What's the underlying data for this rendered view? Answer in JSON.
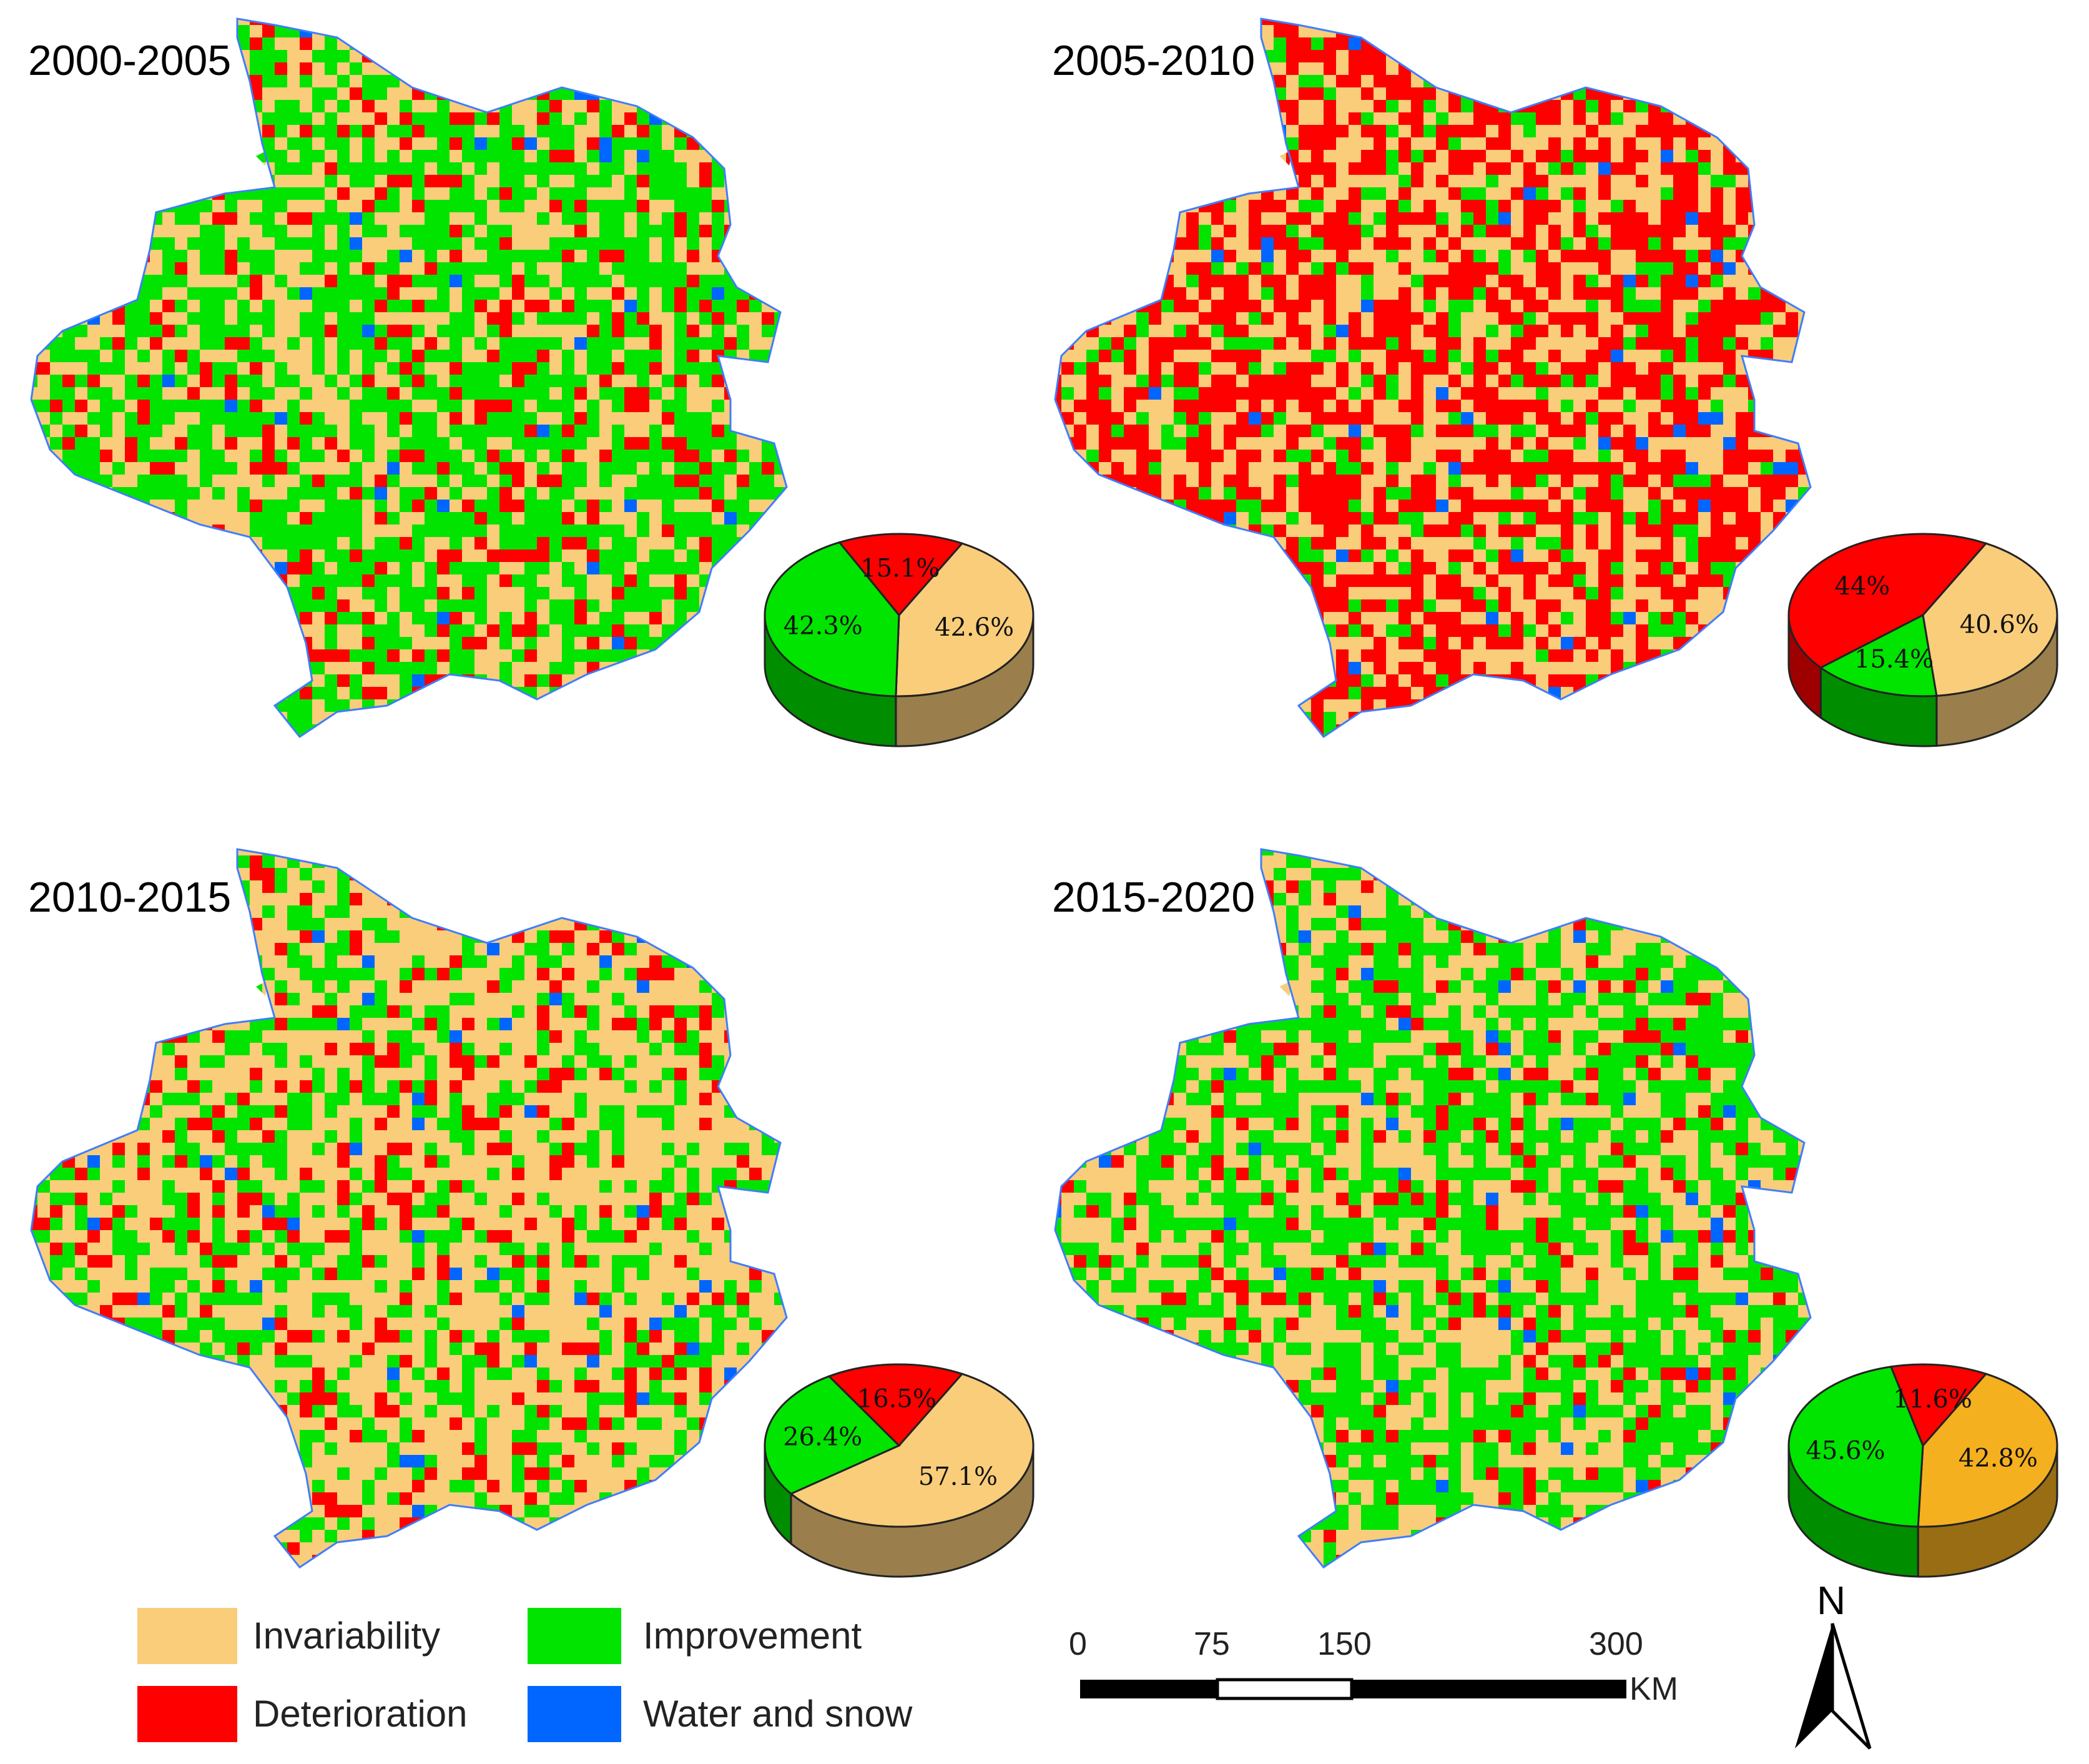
{
  "panels": [
    {
      "title": "2000-2005",
      "pie": {
        "order": [
          "invariability",
          "improvement",
          "deterioration"
        ],
        "values": {
          "invariability": 42.6,
          "improvement": 42.3,
          "deterioration": 15.1
        },
        "labels": {
          "invariability": "42.6%",
          "improvement": "42.3%",
          "deterioration": "15.1%"
        }
      },
      "map_mix": {
        "invariability": 0.33,
        "improvement": 0.5,
        "deterioration": 0.15,
        "water": 0.02
      }
    },
    {
      "title": "2005-2010",
      "pie": {
        "order": [
          "invariability",
          "improvement",
          "deterioration"
        ],
        "values": {
          "invariability": 40.6,
          "improvement": 15.4,
          "deterioration": 44.0
        },
        "labels": {
          "invariability": "40.6%",
          "improvement": "15.4%",
          "deterioration": "44%"
        }
      },
      "map_mix": {
        "invariability": 0.37,
        "improvement": 0.14,
        "deterioration": 0.47,
        "water": 0.02
      }
    },
    {
      "title": "2010-2015",
      "pie": {
        "order": [
          "invariability",
          "improvement",
          "deterioration"
        ],
        "values": {
          "invariability": 57.1,
          "improvement": 26.4,
          "deterioration": 16.5
        },
        "labels": {
          "invariability": "57.1%",
          "improvement": "26.4%",
          "deterioration": "16.5%"
        }
      },
      "map_mix": {
        "invariability": 0.55,
        "improvement": 0.29,
        "deterioration": 0.14,
        "water": 0.02
      }
    },
    {
      "title": "2015-2020",
      "pie": {
        "order": [
          "invariability",
          "improvement",
          "deterioration"
        ],
        "values": {
          "invariability": 42.8,
          "improvement": 45.6,
          "deterioration": 11.6
        },
        "labels": {
          "invariability": "42.8%",
          "improvement": "45.6%",
          "deterioration": "11.6%"
        }
      },
      "map_mix": {
        "invariability": 0.38,
        "improvement": 0.5,
        "deterioration": 0.1,
        "water": 0.02
      }
    }
  ],
  "legend": {
    "invariability": "Invariability",
    "improvement": "Improvement",
    "deterioration": "Deterioration",
    "water": "Water and snow"
  },
  "colors": {
    "invariability": "#f9cd7a",
    "improvement": "#00e400",
    "deterioration": "#ff0000",
    "water": "#0066ff",
    "pie_invariability_2015": "#f5b01f"
  },
  "scale_bar": {
    "ticks": [
      "0",
      "75",
      "150",
      "300"
    ],
    "tick_values_km": [
      0,
      75,
      150,
      300
    ],
    "unit": "KM"
  },
  "north_arrow": {
    "label": "N"
  }
}
